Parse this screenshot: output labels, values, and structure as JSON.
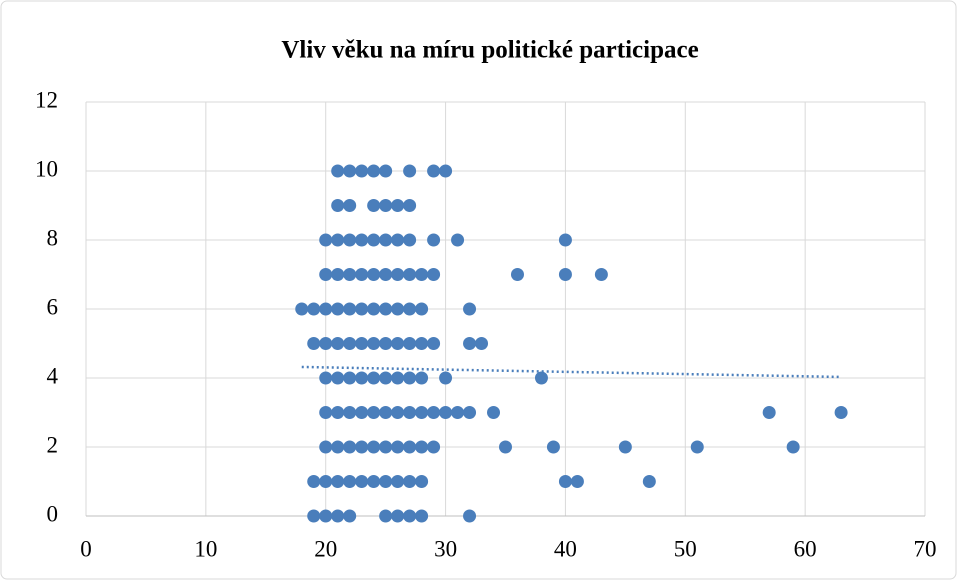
{
  "chart_data": {
    "type": "scatter",
    "title": "Vliv věku na míru politické participace",
    "series": [
      {
        "color": "#4a7ebb",
        "x": [
          21,
          22,
          23,
          24,
          25,
          27,
          29,
          30,
          21,
          22,
          24,
          25,
          26,
          27,
          20,
          21,
          22,
          23,
          24,
          25,
          26,
          27,
          29,
          31,
          40,
          20,
          21,
          22,
          23,
          24,
          25,
          26,
          27,
          28,
          29,
          36,
          40,
          43,
          18,
          19,
          20,
          21,
          22,
          23,
          24,
          25,
          26,
          27,
          28,
          32,
          19,
          20,
          21,
          22,
          23,
          24,
          25,
          26,
          27,
          28,
          29,
          32,
          33,
          20,
          21,
          22,
          23,
          24,
          25,
          26,
          27,
          28,
          30,
          38,
          20,
          21,
          22,
          23,
          24,
          25,
          26,
          27,
          28,
          29,
          30,
          31,
          32,
          34,
          57,
          63,
          20,
          21,
          22,
          23,
          24,
          25,
          26,
          27,
          28,
          29,
          35,
          39,
          45,
          51,
          59,
          19,
          20,
          21,
          22,
          23,
          24,
          25,
          26,
          27,
          28,
          40,
          41,
          47,
          19,
          20,
          21,
          22,
          25,
          26,
          27,
          28,
          32
        ],
        "values": [
          10,
          10,
          10,
          10,
          10,
          10,
          10,
          10,
          9,
          9,
          9,
          9,
          9,
          9,
          8,
          8,
          8,
          8,
          8,
          8,
          8,
          8,
          8,
          8,
          8,
          7,
          7,
          7,
          7,
          7,
          7,
          7,
          7,
          7,
          7,
          7,
          7,
          7,
          6,
          6,
          6,
          6,
          6,
          6,
          6,
          6,
          6,
          6,
          6,
          6,
          5,
          5,
          5,
          5,
          5,
          5,
          5,
          5,
          5,
          5,
          5,
          5,
          5,
          4,
          4,
          4,
          4,
          4,
          4,
          4,
          4,
          4,
          4,
          4,
          3,
          3,
          3,
          3,
          3,
          3,
          3,
          3,
          3,
          3,
          3,
          3,
          3,
          3,
          3,
          3,
          2,
          2,
          2,
          2,
          2,
          2,
          2,
          2,
          2,
          2,
          2,
          2,
          2,
          2,
          2,
          1,
          1,
          1,
          1,
          1,
          1,
          1,
          1,
          1,
          1,
          1,
          1,
          1,
          0,
          0,
          0,
          0,
          0,
          0,
          0,
          0,
          0
        ]
      }
    ],
    "trendline": {
      "color": "#4a7ebb",
      "x": [
        18,
        63
      ],
      "values": [
        4.32,
        4.03
      ]
    },
    "xlim": [
      0,
      70
    ],
    "xticks": [
      0,
      10,
      20,
      30,
      40,
      50,
      60,
      70
    ],
    "ylim": [
      0,
      12
    ],
    "yticks": [
      0,
      2,
      4,
      6,
      8,
      10,
      12
    ],
    "grid": true
  }
}
